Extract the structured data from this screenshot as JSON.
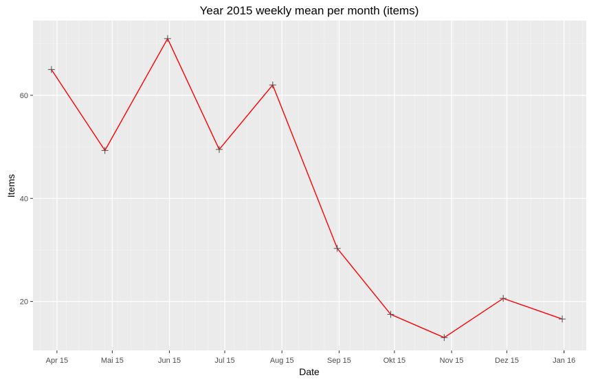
{
  "chart_data": {
    "type": "line",
    "title": "Year 2015 weekly mean per month (items)",
    "xlabel": "Date",
    "ylabel": "Items",
    "x_tick_labels": [
      "Apr 15",
      "Mai 15",
      "Jun 15",
      "Jul 15",
      "Aug 15",
      "Sep 15",
      "Okt 15",
      "Nov 15",
      "Dez 15",
      "Jan 16"
    ],
    "y_tick_labels": [
      "20",
      "40",
      "60"
    ],
    "ylim": [
      10.5,
      74.5
    ],
    "grid": true,
    "series": [
      {
        "x": [
          "2015-03-29",
          "2015-04-27",
          "2015-05-31",
          "2015-06-28",
          "2015-07-27",
          "2015-08-31",
          "2015-09-29",
          "2015-10-28",
          "2015-11-29",
          "2015-12-31"
        ],
        "values": [
          65,
          49.3,
          71,
          49.5,
          62,
          30.3,
          17.5,
          13,
          20.6,
          16.6
        ]
      }
    ],
    "colors": {
      "line": "#ff0000",
      "point": "#4d4d4d",
      "panel": "#ebebeb",
      "grid": "#ffffff"
    }
  }
}
